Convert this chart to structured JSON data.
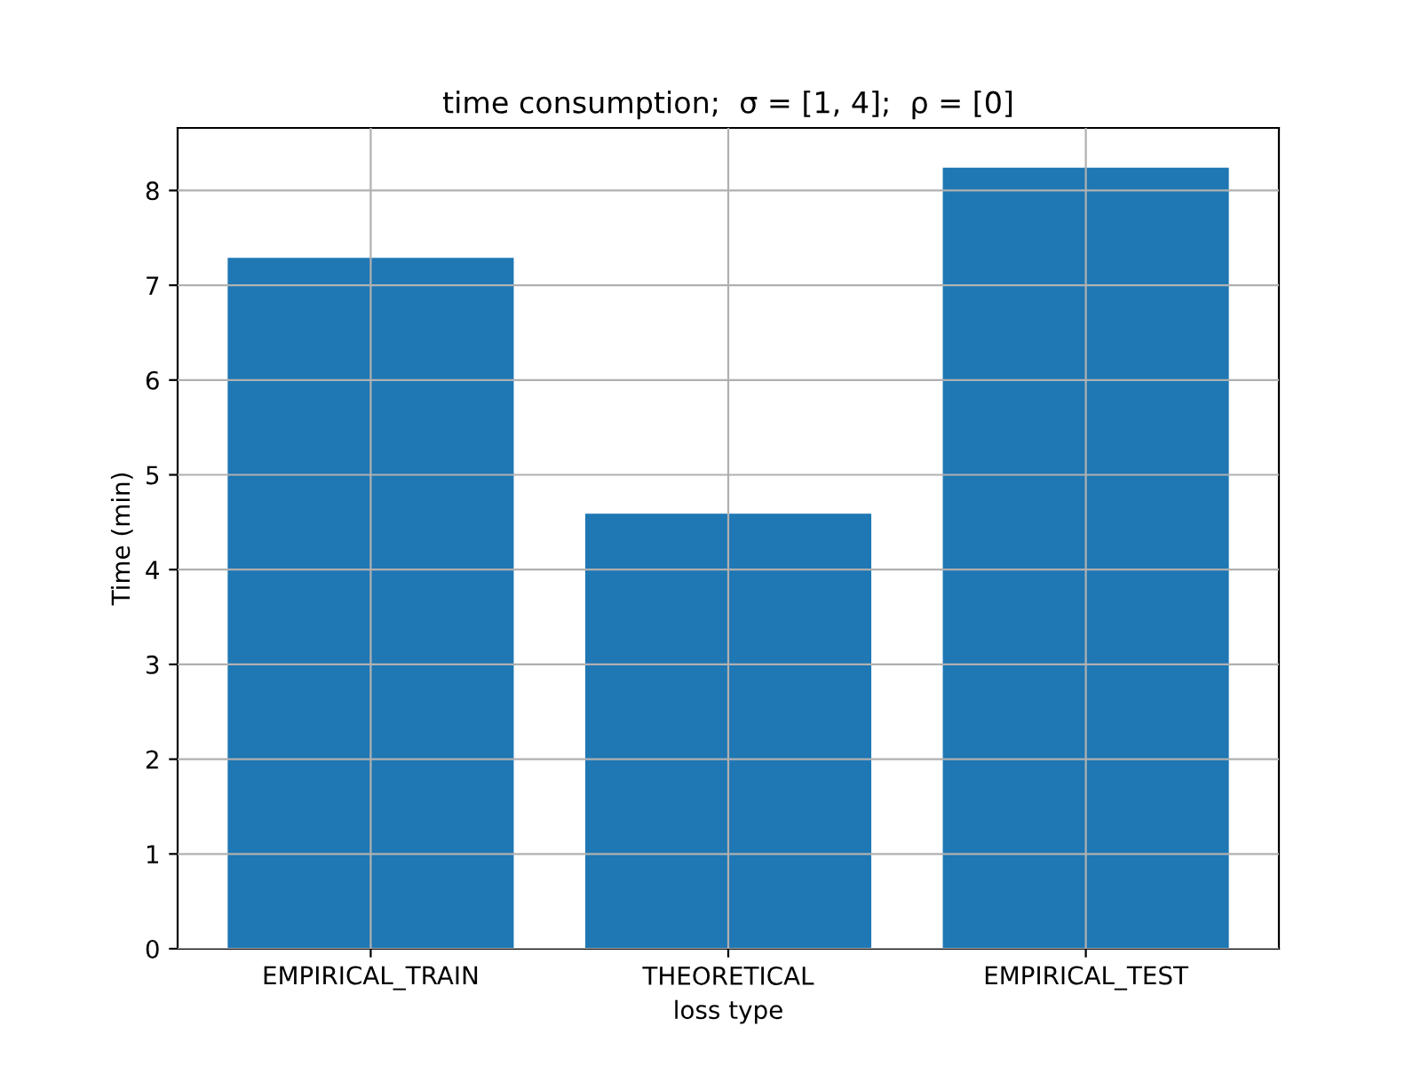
{
  "chart_data": {
    "type": "bar",
    "title": "time consumption;  σ = [1, 4];  ρ = [0]",
    "xlabel": "loss type",
    "ylabel": "Time (min)",
    "categories": [
      "EMPIRICAL_TRAIN",
      "THEORETICAL",
      "EMPIRICAL_TEST"
    ],
    "values": [
      7.29,
      4.59,
      8.24
    ],
    "color": "#1f77b4",
    "ylim": [
      0,
      8.66
    ],
    "yticks": [
      0,
      1,
      2,
      3,
      4,
      5,
      6,
      7,
      8
    ],
    "grid": true
  }
}
